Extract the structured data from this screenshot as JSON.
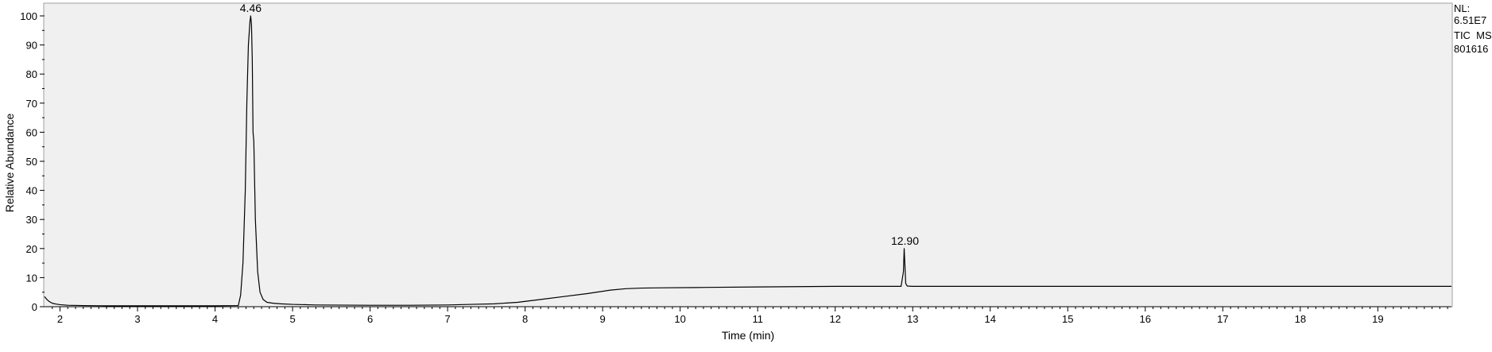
{
  "chart_data": {
    "type": "line",
    "title": "",
    "xlabel": "Time (min)",
    "ylabel": "Relative Abundance",
    "xlim": [
      1.8,
      19.95
    ],
    "ylim": [
      0,
      100
    ],
    "x_ticks": [
      2,
      3,
      4,
      5,
      6,
      7,
      8,
      9,
      10,
      11,
      12,
      13,
      14,
      15,
      16,
      17,
      18,
      19
    ],
    "y_ticks": [
      0,
      10,
      20,
      30,
      40,
      50,
      60,
      70,
      80,
      90,
      100
    ],
    "grid": false,
    "info_lines": [
      "NL:",
      "6.51E7",
      "TIC  MS",
      "801616"
    ],
    "peak_labels": [
      {
        "x": 4.46,
        "y": 100,
        "label": "4.46"
      },
      {
        "x": 12.9,
        "y": 20,
        "label": "12.90"
      }
    ],
    "series": [
      {
        "x": [
          1.8,
          1.83,
          1.86,
          1.9,
          1.95,
          2.0,
          2.1,
          2.3,
          2.6,
          3.0,
          3.5,
          4.0,
          4.3,
          4.33,
          4.36,
          4.39,
          4.41,
          4.43,
          4.45,
          4.46,
          4.47,
          4.48,
          4.49,
          4.5,
          4.52,
          4.55,
          4.58,
          4.62,
          4.67,
          4.75,
          4.85,
          5.0,
          5.3,
          6.0,
          6.5,
          7.0,
          7.3,
          7.6,
          7.9,
          8.2,
          8.5,
          8.8,
          9.1,
          9.3,
          9.5,
          9.8,
          10.2,
          11.0,
          12.0,
          12.85,
          12.88,
          12.89,
          12.9,
          12.91,
          12.93,
          13.0,
          14.0,
          15.0,
          16.0,
          17.0,
          18.0,
          19.0,
          19.95
        ],
        "y": [
          3.5,
          2.5,
          1.8,
          1.2,
          0.9,
          0.7,
          0.5,
          0.4,
          0.3,
          0.3,
          0.3,
          0.3,
          0.4,
          4,
          15,
          40,
          70,
          90,
          98,
          100,
          97,
          85,
          60,
          57,
          30,
          12,
          5,
          2.5,
          1.5,
          1.2,
          1.0,
          0.8,
          0.6,
          0.5,
          0.5,
          0.6,
          0.8,
          1.0,
          1.5,
          2.5,
          3.5,
          4.5,
          5.7,
          6.2,
          6.4,
          6.5,
          6.6,
          6.8,
          7.0,
          7.0,
          12,
          20,
          14,
          8,
          7.1,
          7.0,
          7.0,
          7.0,
          7.0,
          7.0,
          7.0,
          7.0,
          7.0
        ]
      }
    ]
  }
}
